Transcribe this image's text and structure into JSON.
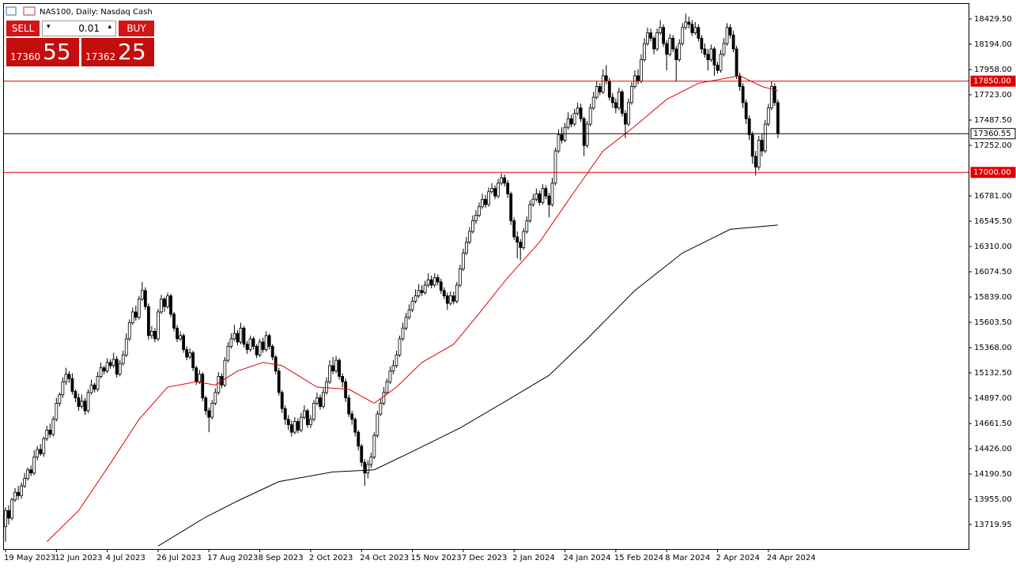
{
  "chart_data": {
    "type": "candlestick",
    "title": "NAS100, Daily:  Nasdaq Cash",
    "color": "#000000",
    "categories": [
      "19 May 2023",
      null,
      null,
      null,
      null,
      null,
      null,
      null,
      null,
      null,
      null,
      null,
      null,
      null,
      null,
      null,
      "12 Jun 2023",
      null,
      null,
      null,
      null,
      null,
      null,
      null,
      null,
      null,
      null,
      null,
      null,
      null,
      null,
      null,
      "4 Jul 2023",
      null,
      null,
      null,
      null,
      null,
      null,
      null,
      null,
      null,
      null,
      null,
      null,
      null,
      null,
      null,
      "26 Jul 2023",
      null,
      null,
      null,
      null,
      null,
      null,
      null,
      null,
      null,
      null,
      null,
      null,
      null,
      null,
      null,
      "17 Aug 2023",
      null,
      null,
      null,
      null,
      null,
      null,
      null,
      null,
      null,
      null,
      null,
      null,
      null,
      null,
      null,
      "8 Sep 2023",
      null,
      null,
      null,
      null,
      null,
      null,
      null,
      null,
      null,
      null,
      null,
      null,
      null,
      null,
      null,
      "2 Oct 2023",
      null,
      null,
      null,
      null,
      null,
      null,
      null,
      null,
      null,
      null,
      null,
      null,
      null,
      null,
      null,
      "24 Oct 2023",
      null,
      null,
      null,
      null,
      null,
      null,
      null,
      null,
      null,
      null,
      null,
      null,
      null,
      null,
      null,
      "15 Nov 2023",
      null,
      null,
      null,
      null,
      null,
      null,
      null,
      null,
      null,
      null,
      null,
      null,
      null,
      null,
      null,
      "7 Dec 2023",
      null,
      null,
      null,
      null,
      null,
      null,
      null,
      null,
      null,
      null,
      null,
      null,
      null,
      null,
      null,
      "2 Jan 2024",
      null,
      null,
      null,
      null,
      null,
      null,
      null,
      null,
      null,
      null,
      null,
      null,
      null,
      null,
      null,
      "24 Jan 2024",
      null,
      null,
      null,
      null,
      null,
      null,
      null,
      null,
      null,
      null,
      null,
      null,
      null,
      null,
      null,
      "15 Feb 2024",
      null,
      null,
      null,
      null,
      null,
      null,
      null,
      null,
      null,
      null,
      null,
      null,
      null,
      null,
      null,
      "8 Mar 2024",
      null,
      null,
      null,
      null,
      null,
      null,
      null,
      null,
      null,
      null,
      null,
      null,
      null,
      null,
      null,
      "2 Apr 2024",
      null,
      null,
      null,
      null,
      null,
      null,
      null,
      null,
      null,
      null,
      null,
      null,
      null,
      null,
      null,
      "24 Apr 2024",
      null,
      null,
      null
    ],
    "open": [
      13700,
      13850,
      13780,
      13950,
      14020,
      13990,
      14080,
      14150,
      14230,
      14200,
      14350,
      14420,
      14380,
      14520,
      14600,
      14560,
      14700,
      14850,
      14930,
      15050,
      15120,
      15080,
      14960,
      14900,
      14820,
      14870,
      14780,
      14950,
      15020,
      14980,
      15100,
      15180,
      15150,
      15230,
      15200,
      15260,
      15120,
      15220,
      15300,
      15450,
      15600,
      15700,
      15650,
      15820,
      15900,
      15750,
      15480,
      15520,
      15450,
      15700,
      15820,
      15750,
      15850,
      15680,
      15550,
      15450,
      15480,
      15350,
      15280,
      15320,
      15180,
      15050,
      15120,
      14900,
      14780,
      14720,
      14850,
      14950,
      15100,
      15020,
      15250,
      15380,
      15450,
      15500,
      15420,
      15550,
      15400,
      15350,
      15450,
      15380,
      15300,
      15420,
      15350,
      15480,
      15380,
      15280,
      15150,
      14950,
      14800,
      14700,
      14650,
      14580,
      14680,
      14600,
      14720,
      14780,
      14650,
      14700,
      14850,
      14900,
      14820,
      14950,
      15050,
      15200,
      15150,
      15250,
      15100,
      15050,
      14900,
      14750,
      14700,
      14580,
      14450,
      14300,
      14200,
      14280,
      14350,
      14550,
      14750,
      14850,
      14950,
      15050,
      15150,
      15200,
      15300,
      15450,
      15550,
      15650,
      15720,
      15800,
      15850,
      15900,
      15880,
      15950,
      16000,
      15950,
      16020,
      15980,
      15900,
      15850,
      15780,
      15850,
      15800,
      15950,
      16100,
      16250,
      16350,
      16450,
      16550,
      16600,
      16680,
      16750,
      16700,
      16820,
      16850,
      16780,
      16900,
      16950,
      16900,
      16800,
      16550,
      16400,
      16350,
      16300,
      16450,
      16550,
      16700,
      16750,
      16800,
      16720,
      16850,
      16780,
      16700,
      16900,
      17200,
      17350,
      17300,
      17420,
      17500,
      17450,
      17550,
      17600,
      17500,
      17250,
      17450,
      17600,
      17700,
      17800,
      17750,
      17900,
      17850,
      17700,
      17650,
      17600,
      17750,
      17550,
      17450,
      17650,
      17800,
      17900,
      17850,
      18050,
      18200,
      18300,
      18250,
      18150,
      18300,
      18350,
      18200,
      18100,
      18250,
      18150,
      18050,
      18200,
      18350,
      18400,
      18380,
      18300,
      18350,
      18250,
      18150,
      18100,
      18050,
      18150,
      18000,
      17950,
      18100,
      18200,
      18350,
      18280,
      18150,
      17900,
      17800,
      17650,
      17500,
      17350,
      17150,
      17050,
      17300,
      17200,
      17450,
      17600,
      17800,
      17650
    ],
    "high": [
      13880,
      13900,
      13970,
      14060,
      14080,
      14110,
      14200,
      14250,
      14270,
      14410,
      14450,
      14470,
      14540,
      14640,
      14660,
      14730,
      14900,
      14950,
      15090,
      15180,
      15150,
      15130,
      14980,
      14940,
      14930,
      14900,
      14980,
      15070,
      15040,
      15140,
      15230,
      15200,
      15270,
      15260,
      15320,
      15290,
      15250,
      15340,
      15500,
      15630,
      15740,
      15760,
      15850,
      15980,
      15930,
      15780,
      15570,
      15550,
      15730,
      15860,
      15840,
      15880,
      15870,
      15700,
      15580,
      15520,
      15500,
      15380,
      15360,
      15340,
      15200,
      15160,
      15140,
      14920,
      14810,
      14880,
      14990,
      15140,
      15130,
      15280,
      15420,
      15500,
      15580,
      15530,
      15600,
      15570,
      15430,
      15480,
      15470,
      15400,
      15450,
      15460,
      15520,
      15500,
      15400,
      15300,
      15180,
      14970,
      14830,
      14740,
      14690,
      14720,
      14710,
      14760,
      14830,
      14800,
      14740,
      14880,
      14950,
      14930,
      14990,
      15090,
      15250,
      15280,
      15290,
      15270,
      15130,
      15080,
      14930,
      14780,
      14720,
      14600,
      14470,
      14330,
      14320,
      14390,
      14580,
      14780,
      14890,
      15000,
      15080,
      15190,
      15250,
      15340,
      15480,
      15600,
      15690,
      15770,
      15840,
      15910,
      15960,
      15950,
      15990,
      16060,
      16040,
      16060,
      16050,
      16010,
      15930,
      15880,
      15890,
      15890,
      15980,
      16140,
      16290,
      16400,
      16490,
      16600,
      16650,
      16720,
      16800,
      16790,
      16860,
      16900,
      16880,
      16940,
      16990,
      16980,
      16930,
      16820,
      16580,
      16450,
      16380,
      16480,
      16590,
      16740,
      16800,
      16850,
      16830,
      16890,
      16880,
      16810,
      16950,
      17230,
      17400,
      17420,
      17460,
      17560,
      17540,
      17590,
      17650,
      17640,
      17520,
      17480,
      17640,
      17750,
      17850,
      17830,
      17960,
      18000,
      17880,
      17740,
      17690,
      17790,
      17770,
      17580,
      17690,
      17840,
      17950,
      17960,
      18100,
      18250,
      18350,
      18340,
      18270,
      18340,
      18420,
      18380,
      18230,
      18290,
      18280,
      18180,
      18240,
      18390,
      18480,
      18450,
      18420,
      18400,
      18380,
      18280,
      18200,
      18150,
      18190,
      18170,
      18030,
      18140,
      18250,
      18390,
      18380,
      18320,
      18180,
      17930,
      17830,
      17680,
      17530,
      17380,
      17200,
      17340,
      17360,
      17490,
      17640,
      17850,
      17830,
      17680
    ],
    "low": [
      13560,
      13720,
      13760,
      13930,
      13950,
      13960,
      14060,
      14130,
      14170,
      14180,
      14320,
      14360,
      14350,
      14500,
      14530,
      14540,
      14680,
      14820,
      14900,
      15020,
      15040,
      14930,
      14860,
      14780,
      14800,
      14740,
      14760,
      14930,
      14950,
      14960,
      15080,
      15120,
      15130,
      15170,
      15180,
      15090,
      15100,
      15200,
      15280,
      15430,
      15580,
      15620,
      15630,
      15800,
      15720,
      15440,
      15450,
      15420,
      15430,
      15680,
      15700,
      15730,
      15650,
      15520,
      15420,
      15430,
      15320,
      15250,
      15260,
      15150,
      15020,
      15030,
      14870,
      14740,
      14580,
      14700,
      14830,
      14930,
      14990,
      15000,
      15230,
      15360,
      15430,
      15390,
      15400,
      15370,
      15310,
      15330,
      15350,
      15270,
      15280,
      15320,
      15330,
      15350,
      15250,
      15120,
      14920,
      14760,
      14650,
      14600,
      14540,
      14560,
      14570,
      14580,
      14700,
      14620,
      14620,
      14680,
      14830,
      14790,
      14800,
      14930,
      15030,
      15120,
      15130,
      15070,
      15000,
      14860,
      14720,
      14650,
      14540,
      14410,
      14260,
      14080,
      14150,
      14250,
      14330,
      14530,
      14730,
      14830,
      14930,
      15030,
      15120,
      15180,
      15280,
      15430,
      15530,
      15630,
      15700,
      15780,
      15830,
      15850,
      15860,
      15930,
      15920,
      15930,
      15950,
      15870,
      15820,
      15720,
      15760,
      15770,
      15780,
      15930,
      16080,
      16230,
      16330,
      16430,
      16520,
      16580,
      16660,
      16670,
      16680,
      16800,
      16750,
      16760,
      16880,
      16870,
      16760,
      16510,
      16370,
      16200,
      16180,
      16280,
      16430,
      16530,
      16680,
      16730,
      16690,
      16700,
      16750,
      16580,
      16680,
      16880,
      17180,
      17270,
      17280,
      17400,
      17420,
      17430,
      17530,
      17470,
      17150,
      17230,
      17430,
      17580,
      17680,
      17720,
      17730,
      17820,
      17670,
      17600,
      17550,
      17580,
      17520,
      17320,
      17430,
      17630,
      17780,
      17820,
      17830,
      18030,
      18180,
      18220,
      18100,
      18130,
      18280,
      18170,
      17950,
      18080,
      18120,
      17850,
      18030,
      18180,
      18330,
      18340,
      18270,
      18280,
      18220,
      18110,
      18070,
      17950,
      18030,
      17900,
      17920,
      17930,
      18080,
      18180,
      18250,
      18120,
      17870,
      17760,
      17600,
      17450,
      17300,
      17080,
      16970,
      17020,
      17150,
      17180,
      17430,
      17580,
      17620,
      17320
    ],
    "close": [
      13850,
      13780,
      13950,
      14020,
      13990,
      14080,
      14150,
      14230,
      14200,
      14350,
      14420,
      14380,
      14520,
      14600,
      14560,
      14700,
      14850,
      14930,
      15050,
      15120,
      15080,
      14960,
      14900,
      14820,
      14870,
      14780,
      14950,
      15020,
      14980,
      15100,
      15180,
      15150,
      15230,
      15200,
      15260,
      15120,
      15220,
      15300,
      15450,
      15600,
      15700,
      15650,
      15820,
      15900,
      15750,
      15480,
      15520,
      15450,
      15700,
      15820,
      15750,
      15850,
      15680,
      15550,
      15450,
      15480,
      15350,
      15280,
      15320,
      15180,
      15050,
      15120,
      14900,
      14780,
      14720,
      14850,
      14950,
      15100,
      15020,
      15250,
      15380,
      15450,
      15500,
      15420,
      15550,
      15400,
      15350,
      15450,
      15380,
      15300,
      15420,
      15350,
      15480,
      15380,
      15280,
      15150,
      14950,
      14800,
      14700,
      14650,
      14580,
      14680,
      14600,
      14720,
      14780,
      14650,
      14700,
      14850,
      14900,
      14820,
      14950,
      15050,
      15200,
      15150,
      15250,
      15100,
      15050,
      14900,
      14750,
      14700,
      14580,
      14450,
      14300,
      14200,
      14280,
      14350,
      14550,
      14750,
      14850,
      14950,
      15050,
      15150,
      15200,
      15300,
      15450,
      15550,
      15650,
      15720,
      15800,
      15850,
      15900,
      15880,
      15950,
      16000,
      15950,
      16020,
      15980,
      15900,
      15850,
      15780,
      15850,
      15800,
      15950,
      16100,
      16250,
      16350,
      16450,
      16550,
      16600,
      16680,
      16750,
      16700,
      16820,
      16850,
      16780,
      16900,
      16950,
      16900,
      16800,
      16550,
      16400,
      16350,
      16300,
      16450,
      16550,
      16700,
      16750,
      16800,
      16720,
      16850,
      16780,
      16700,
      16900,
      17200,
      17350,
      17300,
      17420,
      17500,
      17450,
      17550,
      17600,
      17500,
      17250,
      17450,
      17600,
      17700,
      17800,
      17750,
      17900,
      17850,
      17700,
      17650,
      17600,
      17750,
      17550,
      17450,
      17650,
      17800,
      17900,
      17850,
      18050,
      18200,
      18300,
      18250,
      18150,
      18300,
      18350,
      18200,
      18100,
      18250,
      18150,
      18050,
      18200,
      18350,
      18400,
      18380,
      18300,
      18350,
      18250,
      18150,
      18100,
      18050,
      18150,
      18000,
      17950,
      18100,
      18200,
      18350,
      18280,
      18150,
      17900,
      17800,
      17650,
      17500,
      17350,
      17150,
      17050,
      17300,
      17200,
      17450,
      17600,
      17800,
      17650,
      17360.55
    ],
    "moving_averages": [
      {
        "color": "#e00000",
        "x": [
          13,
          23,
          33,
          42,
          51,
          60,
          66,
          73,
          81,
          87,
          98,
          108,
          116,
          123,
          131,
          141,
          148,
          158,
          168,
          178,
          188,
          198,
          208,
          218,
          231,
          238,
          243
        ],
        "values": [
          13560,
          13850,
          14290,
          14700,
          15000,
          15050,
          15020,
          15150,
          15230,
          15200,
          15000,
          14980,
          14850,
          15000,
          15230,
          15400,
          15650,
          16020,
          16350,
          16780,
          17200,
          17430,
          17680,
          17830,
          17900,
          17800,
          17760
        ]
      },
      {
        "color": "#000000",
        "x": [
          48,
          63,
          73,
          86,
          103,
          116,
          128,
          143,
          158,
          171,
          183,
          198,
          213,
          228,
          243
        ],
        "values": [
          13520,
          13790,
          13940,
          14120,
          14210,
          14230,
          14400,
          14620,
          14880,
          15110,
          15450,
          15900,
          16250,
          16470,
          16510
        ]
      }
    ],
    "levels": [
      {
        "value": 17850,
        "label": "17850.00",
        "color": "#e00000"
      },
      {
        "value": 17000,
        "label": "17000.00",
        "color": "#e00000"
      },
      {
        "value": 17360.55,
        "label": "17360.55",
        "color": "#000000"
      }
    ],
    "ylim": [
      13492,
      18569
    ],
    "yticks": [
      {
        "value": 18429.5,
        "label": "18429.50"
      },
      {
        "value": 18194,
        "label": "18194.00"
      },
      {
        "value": 17958,
        "label": "17958.00"
      },
      {
        "value": 17723,
        "label": "17723.00"
      },
      {
        "value": 17487.5,
        "label": "17487.50"
      },
      {
        "value": 17252,
        "label": "17252.00"
      },
      {
        "value": 16781,
        "label": "16781.00"
      },
      {
        "value": 16545.5,
        "label": "16545.50"
      },
      {
        "value": 16310,
        "label": "16310.00"
      },
      {
        "value": 16074.5,
        "label": "16074.50"
      },
      {
        "value": 15839,
        "label": "15839.00"
      },
      {
        "value": 15603.5,
        "label": "15603.50"
      },
      {
        "value": 15368,
        "label": "15368.00"
      },
      {
        "value": 15132.5,
        "label": "15132.50"
      },
      {
        "value": 14897,
        "label": "14897.00"
      },
      {
        "value": 14661.5,
        "label": "14661.50"
      },
      {
        "value": 14426,
        "label": "14426.00"
      },
      {
        "value": 14190.5,
        "label": "14190.50"
      },
      {
        "value": 13955,
        "label": "13955.00"
      },
      13719.95
    ]
  },
  "trade_panel": {
    "sell": "SELL",
    "buy": "BUY",
    "lot": "0.01",
    "sell_main": "17360",
    "sell_pips": "55",
    "buy_main": "17362",
    "buy_pips": "25"
  }
}
